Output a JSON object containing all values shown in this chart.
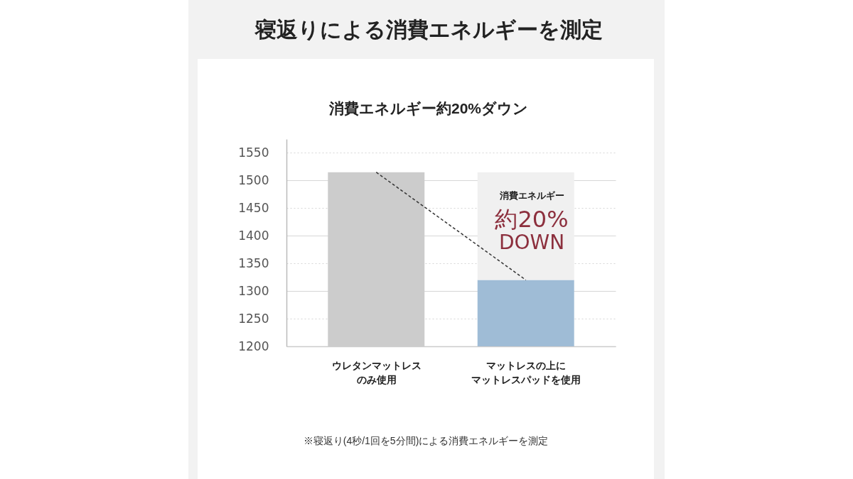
{
  "chart_data": {
    "type": "bar",
    "title": "寝返りによる消費エネルギーを測定",
    "subtitle": "消費エネルギー約20%ダウン",
    "categories": [
      "ウレタンマットレスのみ使用",
      "マットレスの上にマットレスパッドを使用"
    ],
    "series": [
      {
        "colors": [
          "#cccccc",
          "#9fbcd6"
        ],
        "values": [
          1515,
          1320
        ]
      },
      {
        "type": "line",
        "color": "#333333",
        "line_style": "dashed",
        "values": [
          1515,
          1320
        ]
      }
    ],
    "bands": [
      {
        "axis": "y",
        "from": 1320,
        "to": 1515,
        "color": "#f0f0f0"
      }
    ],
    "ylim": [
      1200,
      1575
    ],
    "yticks": [
      1200,
      1250,
      1300,
      1350,
      1400,
      1450,
      1500,
      1550
    ],
    "grid": "y",
    "annotations": [
      "消費エネルギー",
      "約20%",
      "DOWN",
      "※寝返り(4秒/1回を5分間)による消費エネルギーを測定"
    ]
  }
}
